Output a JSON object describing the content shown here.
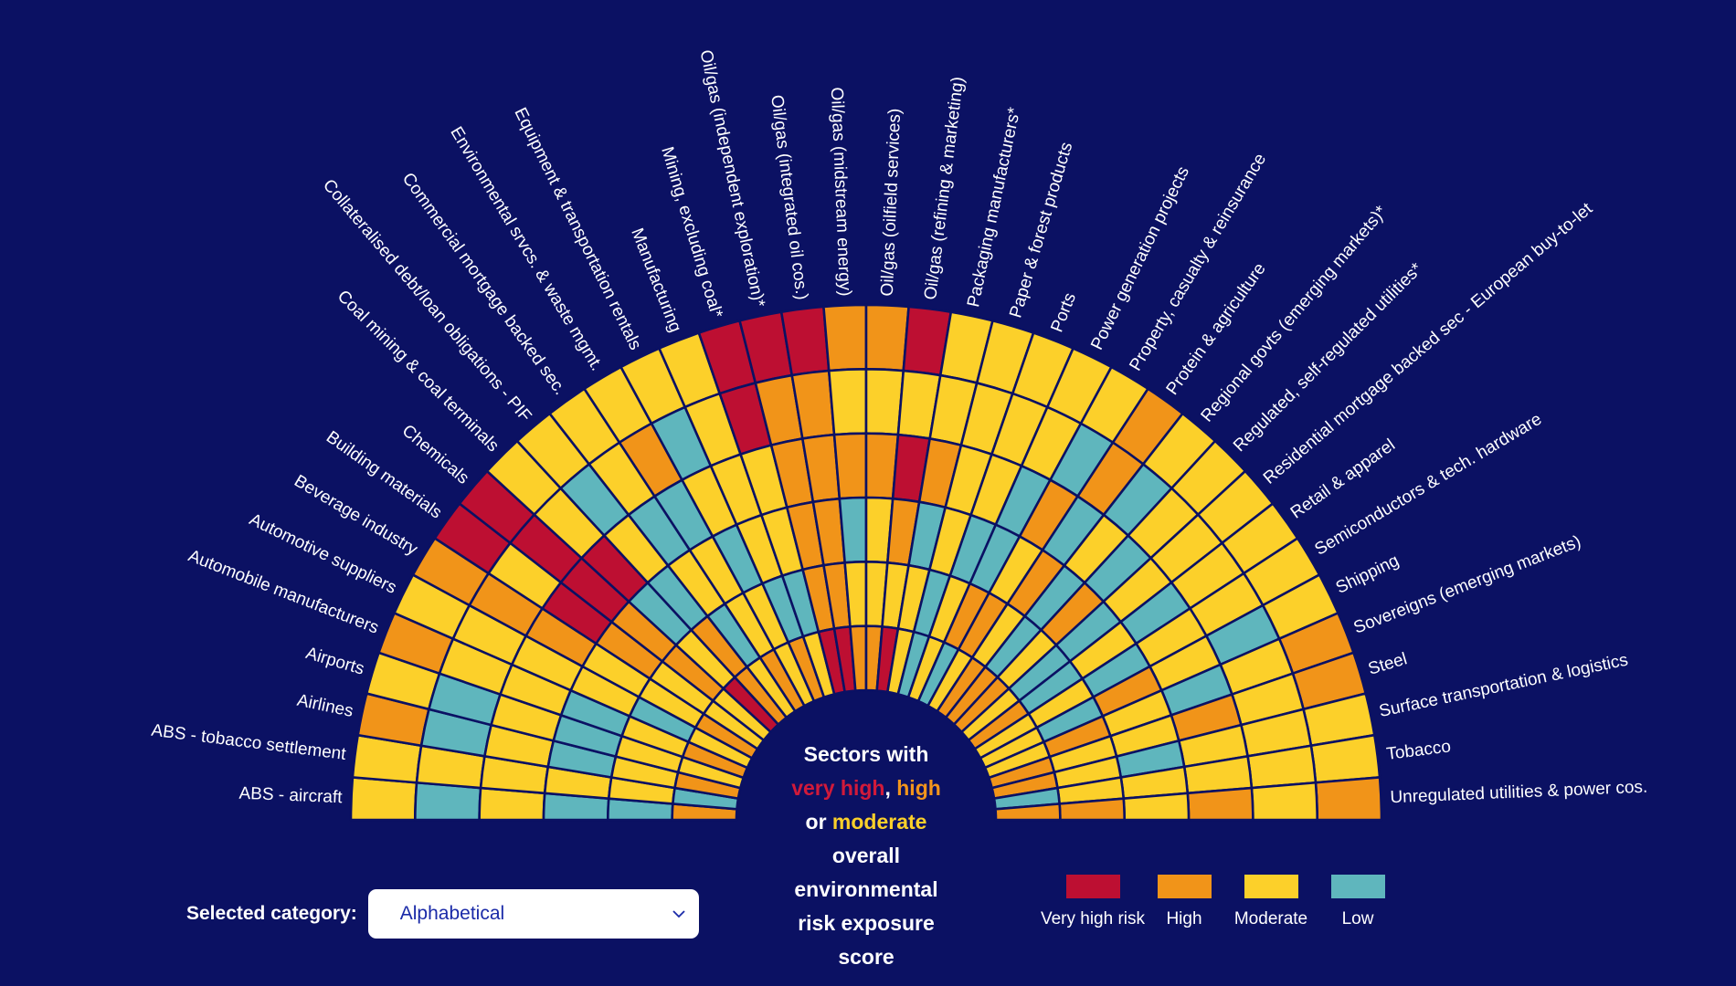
{
  "risk_levels": {
    "V": {
      "label": "Very high risk",
      "color": "#bd0f32"
    },
    "H": {
      "label": "High",
      "color": "#f19419"
    },
    "M": {
      "label": "Moderate",
      "color": "#fcd02a"
    },
    "L": {
      "label": "Low",
      "color": "#5fb6bd"
    }
  },
  "colors": {
    "background": "#0b1163",
    "grid_line": "#0b1163"
  },
  "center_text": {
    "line1": "Sectors with",
    "very_high": "very high",
    "comma": ", ",
    "high": "high",
    "or": "or ",
    "moderate": "moderate",
    "line4": "overall",
    "line5": "environmental",
    "line6": "risk exposure",
    "line7": "score"
  },
  "selector": {
    "label": "Selected category:",
    "value": "Alphabetical",
    "chevron_icon": "chevron-down-icon"
  },
  "legend": [
    {
      "key": "V",
      "label": "Very high risk"
    },
    {
      "key": "H",
      "label": "High"
    },
    {
      "key": "M",
      "label": "Moderate"
    },
    {
      "key": "L",
      "label": "Low"
    }
  ],
  "chart_data": {
    "type": "heatmap",
    "layout": "radial semicircle",
    "title": "Sectors with very high, high or moderate overall environmental risk exposure score",
    "ring_order": "outer to inner",
    "ring_count": 6,
    "categories": [
      "ABS - aircraft",
      "ABS - tobacco settlement",
      "Airlines",
      "Airports",
      "Automobile manufacturers",
      "Automotive suppliers",
      "Beverage industry",
      "Building materials",
      "Chemicals",
      "Coal mining & coal terminals",
      "Collateralised debt/loan obligations - PIF",
      "Commercial mortgage backed sec.",
      "Environmental srvcs. & waste mgmt.",
      "Equipment & transportation rentals",
      "Manufacturing",
      "Mining, excluding coal*",
      "Oil/gas (independent exploration)*",
      "Oil/gas (integrated oil cos.)",
      "Oil/gas (midstream energy)",
      "Oil/gas (oilfield services)",
      "Oil/gas (refining & marketing)",
      "Packaging manufacturers*",
      "Paper & forest products",
      "Ports",
      "Power generation projects",
      "Property, casualty & reinsurance",
      "Protein & agriculture",
      "Regional govts (emerging markets)*",
      "Regulated, self-regulated utilities*",
      "Residential mortgage backed sec - European buy-to-let",
      "Retail & apparel",
      "Semiconductors & tech. hardware",
      "Shipping",
      "Sovereigns (emerging markets)",
      "Steel",
      "Surface transportation & logistics",
      "Tobacco",
      "Unregulated utilities & power cos."
    ],
    "values": [
      [
        "M",
        "L",
        "M",
        "L",
        "L",
        "H"
      ],
      [
        "M",
        "M",
        "M",
        "M",
        "M",
        "L"
      ],
      [
        "H",
        "L",
        "M",
        "L",
        "M",
        "H"
      ],
      [
        "M",
        "L",
        "M",
        "L",
        "M",
        "M"
      ],
      [
        "H",
        "M",
        "M",
        "L",
        "M",
        "H"
      ],
      [
        "M",
        "M",
        "M",
        "M",
        "L",
        "M"
      ],
      [
        "H",
        "H",
        "H",
        "M",
        "M",
        "H"
      ],
      [
        "V",
        "M",
        "V",
        "H",
        "M",
        "M"
      ],
      [
        "V",
        "V",
        "V",
        "H",
        "H",
        "M"
      ],
      [
        "M",
        "M",
        "V",
        "L",
        "M",
        "V"
      ],
      [
        "M",
        "L",
        "M",
        "L",
        "H",
        "H"
      ],
      [
        "M",
        "M",
        "L",
        "M",
        "L",
        "M"
      ],
      [
        "M",
        "H",
        "L",
        "M",
        "M",
        "H"
      ],
      [
        "M",
        "L",
        "M",
        "L",
        "M",
        "M"
      ],
      [
        "M",
        "M",
        "M",
        "M",
        "L",
        "H"
      ],
      [
        "V",
        "V",
        "M",
        "M",
        "L",
        "M"
      ],
      [
        "V",
        "H",
        "H",
        "H",
        "H",
        "V"
      ],
      [
        "V",
        "H",
        "H",
        "H",
        "H",
        "V"
      ],
      [
        "H",
        "M",
        "H",
        "L",
        "M",
        "H"
      ],
      [
        "H",
        "M",
        "H",
        "M",
        "M",
        "H"
      ],
      [
        "V",
        "M",
        "V",
        "H",
        "M",
        "V"
      ],
      [
        "M",
        "M",
        "H",
        "L",
        "M",
        "M"
      ],
      [
        "M",
        "M",
        "M",
        "M",
        "L",
        "L"
      ],
      [
        "M",
        "M",
        "M",
        "L",
        "M",
        "M"
      ],
      [
        "M",
        "M",
        "L",
        "L",
        "H",
        "L"
      ],
      [
        "M",
        "L",
        "H",
        "M",
        "H",
        "M"
      ],
      [
        "H",
        "H",
        "L",
        "H",
        "M",
        "H"
      ],
      [
        "M",
        "L",
        "M",
        "L",
        "L",
        "H"
      ],
      [
        "M",
        "M",
        "L",
        "H",
        "M",
        "H"
      ],
      [
        "M",
        "M",
        "M",
        "L",
        "L",
        "M"
      ],
      [
        "M",
        "M",
        "L",
        "M",
        "L",
        "H"
      ],
      [
        "M",
        "M",
        "M",
        "L",
        "M",
        "M"
      ],
      [
        "M",
        "L",
        "M",
        "H",
        "L",
        "M"
      ],
      [
        "H",
        "M",
        "L",
        "M",
        "H",
        "M"
      ],
      [
        "H",
        "M",
        "H",
        "M",
        "M",
        "H"
      ],
      [
        "M",
        "M",
        "M",
        "L",
        "M",
        "H"
      ],
      [
        "M",
        "M",
        "M",
        "M",
        "M",
        "L"
      ],
      [
        "H",
        "M",
        "H",
        "M",
        "H",
        "H"
      ]
    ],
    "legend": [
      "Very high risk",
      "High",
      "Moderate",
      "Low"
    ],
    "legend_position": "bottom-right"
  }
}
